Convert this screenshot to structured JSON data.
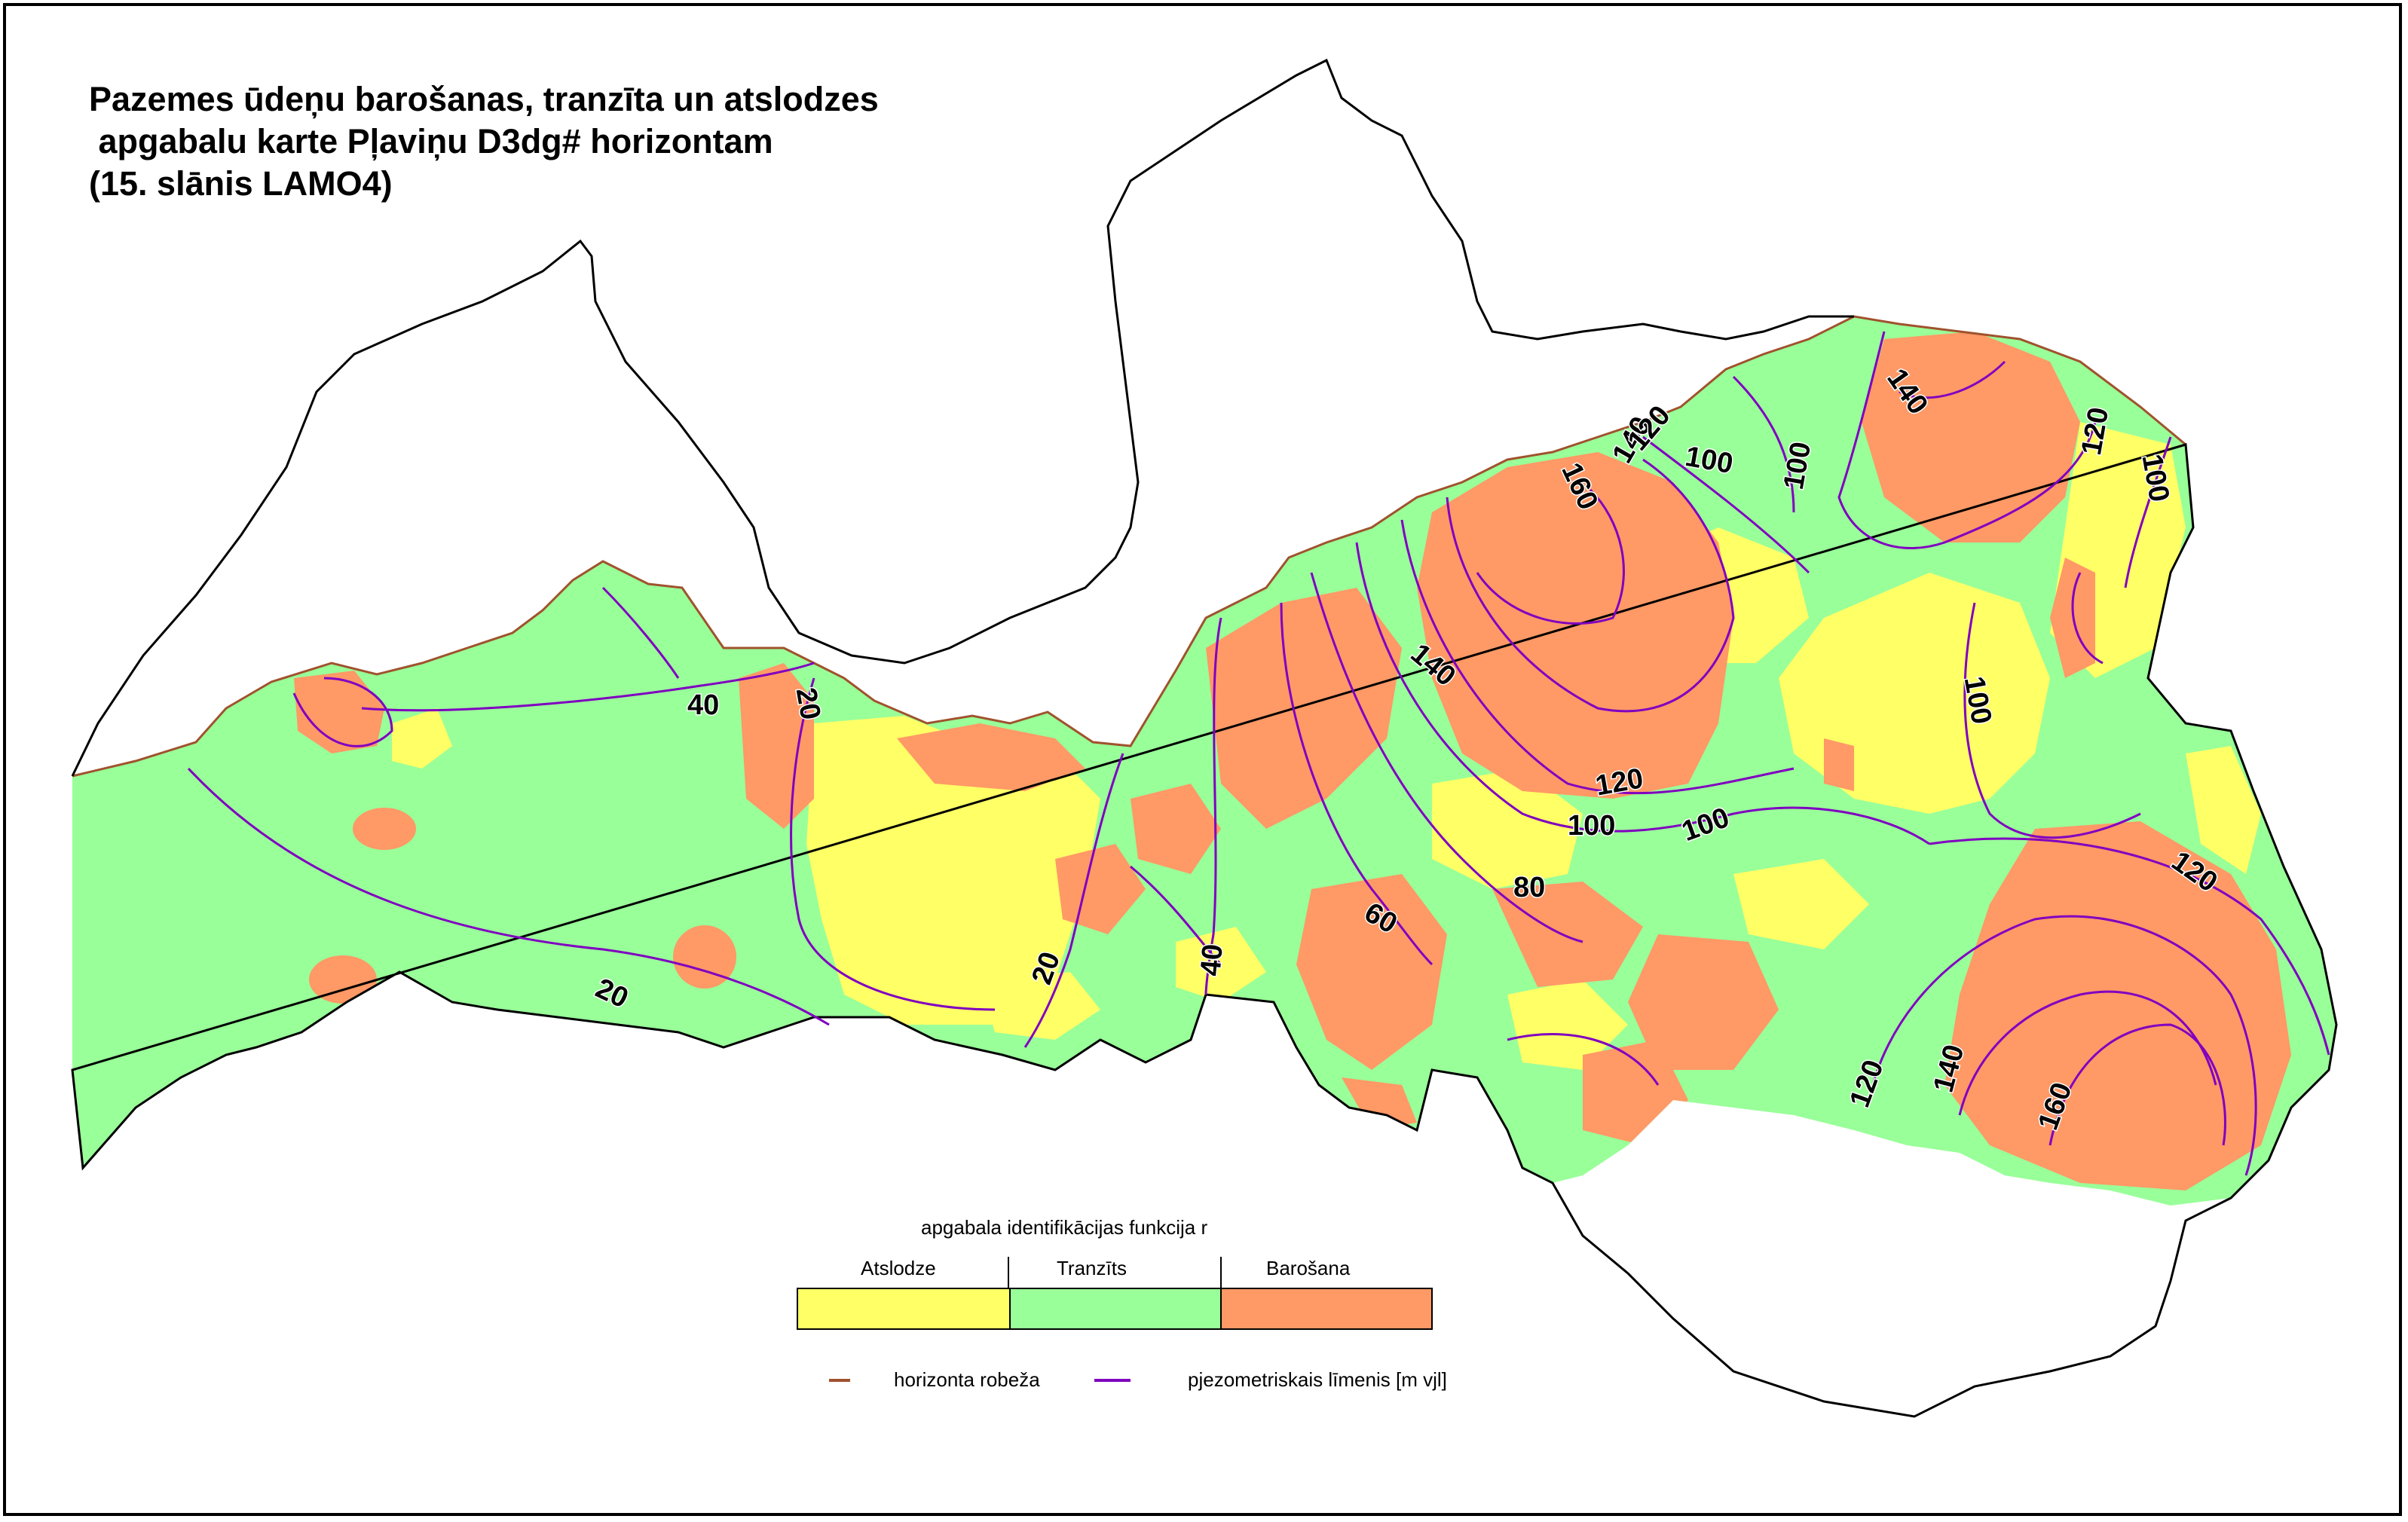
{
  "title": {
    "line1": "Pazemes ūdeņu barošanas, tranzīta un atslodzes",
    "line2": " apgabalu karte Pļaviņu D3dg# horizontam",
    "line3": "(15. slānis LAMO4)"
  },
  "colors": {
    "atslodze": "#ffff66",
    "tranzits": "#99ff99",
    "barosana": "#ff9966",
    "contour": "#8000c0",
    "horizon_boundary": "#a0522d",
    "border": "#000000"
  },
  "legend": {
    "heading": "apgabala identifikācijas funkcija r",
    "classes": [
      {
        "label": "Atslodze",
        "color": "#ffff66"
      },
      {
        "label": "Tranzīts",
        "color": "#99ff99"
      },
      {
        "label": "Barošana",
        "color": "#ff9966"
      }
    ],
    "line_items": [
      {
        "label": "horizonta robeža",
        "color": "#a0522d"
      },
      {
        "label": "pjezometriskais līmenis [m vjl]",
        "color": "#8000c0"
      }
    ]
  },
  "contour_labels": [
    "40",
    "20",
    "20",
    "20",
    "40",
    "60",
    "80",
    "100",
    "100",
    "120",
    "140",
    "160",
    "140",
    "120",
    "100",
    "100",
    "140",
    "120",
    "100",
    "100",
    "120",
    "120",
    "140",
    "160"
  ]
}
